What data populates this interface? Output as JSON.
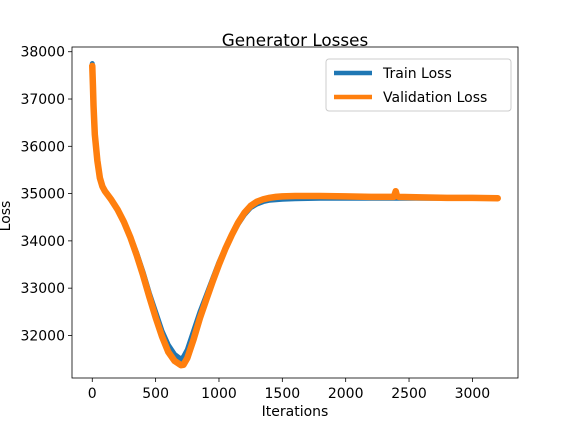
{
  "chart_data": {
    "type": "line",
    "title": "Generator Losses",
    "xlabel": "Iterations",
    "ylabel": "Loss",
    "xlim": [
      -160,
      3360
    ],
    "ylim": [
      31100,
      38100
    ],
    "xticks": [
      0,
      500,
      1000,
      1500,
      2000,
      2500,
      3000
    ],
    "yticks": [
      32000,
      33000,
      34000,
      35000,
      36000,
      37000,
      38000
    ],
    "grid": false,
    "legend_position": "upper right",
    "series": [
      {
        "name": "Train Loss",
        "color": "#1f77b4",
        "x": [
          0,
          5,
          10,
          20,
          40,
          60,
          80,
          100,
          150,
          200,
          250,
          300,
          350,
          400,
          450,
          500,
          550,
          600,
          650,
          700,
          720,
          750,
          800,
          850,
          900,
          950,
          1000,
          1050,
          1100,
          1150,
          1200,
          1250,
          1300,
          1350,
          1400,
          1450,
          1500,
          1600,
          1700,
          1800,
          2000,
          2200,
          2400,
          2600,
          2800,
          3000,
          3200
        ],
        "y": [
          37750,
          37300,
          36900,
          36300,
          35700,
          35350,
          35150,
          35050,
          34850,
          34650,
          34400,
          34100,
          33750,
          33350,
          32900,
          32500,
          32100,
          31800,
          31600,
          31500,
          31550,
          31700,
          32100,
          32500,
          32850,
          33200,
          33550,
          33850,
          34100,
          34350,
          34550,
          34700,
          34780,
          34830,
          34860,
          34870,
          34880,
          34890,
          34895,
          34900,
          34900,
          34900,
          34900,
          34900,
          34900,
          34900,
          34900
        ]
      },
      {
        "name": "Validation Loss",
        "color": "#ff7f0e",
        "x": [
          0,
          5,
          10,
          20,
          40,
          60,
          80,
          100,
          150,
          200,
          250,
          300,
          350,
          400,
          450,
          500,
          550,
          600,
          650,
          700,
          720,
          750,
          800,
          850,
          900,
          950,
          1000,
          1050,
          1100,
          1150,
          1200,
          1250,
          1300,
          1350,
          1400,
          1450,
          1500,
          1600,
          1700,
          1800,
          2000,
          2200,
          2380,
          2395,
          2405,
          2420,
          2600,
          2800,
          3000,
          3200
        ],
        "y": [
          37700,
          37300,
          36850,
          36250,
          35700,
          35330,
          35150,
          35050,
          34870,
          34660,
          34400,
          34080,
          33700,
          33280,
          32820,
          32380,
          31980,
          31650,
          31460,
          31370,
          31380,
          31520,
          31920,
          32370,
          32760,
          33140,
          33500,
          33830,
          34120,
          34380,
          34590,
          34740,
          34830,
          34880,
          34910,
          34930,
          34940,
          34950,
          34950,
          34950,
          34940,
          34930,
          34930,
          35050,
          34950,
          34930,
          34920,
          34910,
          34910,
          34900
        ]
      }
    ]
  }
}
